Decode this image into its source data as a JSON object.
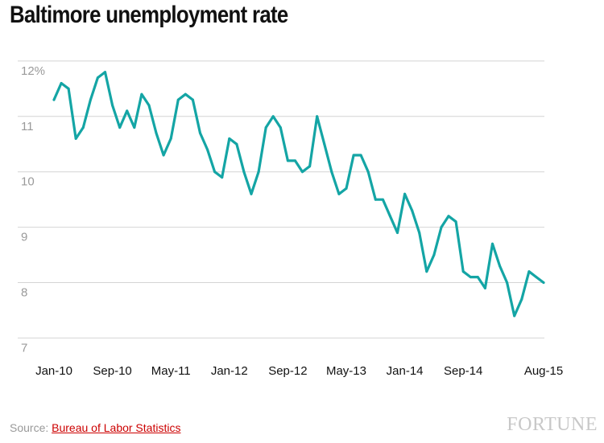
{
  "page": {
    "title": "Baltimore unemployment rate",
    "source_prefix": "Source: ",
    "source_link": "Bureau of Labor Statistics",
    "logo_text": "FORTUNE"
  },
  "chart_data": {
    "type": "line",
    "title": "Baltimore unemployment rate",
    "xlabel": "",
    "ylabel": "",
    "ylim": [
      6.6,
      12.1
    ],
    "y_ticks": [
      {
        "value": 12,
        "label": "12%"
      },
      {
        "value": 11,
        "label": "11"
      },
      {
        "value": 10,
        "label": "10"
      },
      {
        "value": 9,
        "label": "9"
      },
      {
        "value": 8,
        "label": "8"
      },
      {
        "value": 7,
        "label": "7"
      }
    ],
    "x_ticks": [
      {
        "month": "2010-01",
        "label": "Jan-10"
      },
      {
        "month": "2010-09",
        "label": "Sep-10"
      },
      {
        "month": "2011-05",
        "label": "May-11"
      },
      {
        "month": "2012-01",
        "label": "Jan-12"
      },
      {
        "month": "2012-09",
        "label": "Sep-12"
      },
      {
        "month": "2013-05",
        "label": "May-13"
      },
      {
        "month": "2014-01",
        "label": "Jan-14"
      },
      {
        "month": "2014-09",
        "label": "Sep-14"
      },
      {
        "month": "2015-08",
        "label": "Aug-15"
      }
    ],
    "grid": true,
    "line_color": "#14a5a5",
    "series": [
      {
        "x": [
          "2010-01",
          "2010-02",
          "2010-03",
          "2010-04",
          "2010-05",
          "2010-06",
          "2010-07",
          "2010-08",
          "2010-09",
          "2010-10",
          "2010-11",
          "2010-12",
          "2011-01",
          "2011-02",
          "2011-03",
          "2011-04",
          "2011-05",
          "2011-06",
          "2011-07",
          "2011-08",
          "2011-09",
          "2011-10",
          "2011-11",
          "2011-12",
          "2012-01",
          "2012-02",
          "2012-03",
          "2012-04",
          "2012-05",
          "2012-06",
          "2012-07",
          "2012-08",
          "2012-09",
          "2012-10",
          "2012-11",
          "2012-12",
          "2013-01",
          "2013-02",
          "2013-03",
          "2013-04",
          "2013-05",
          "2013-06",
          "2013-07",
          "2013-08",
          "2013-09",
          "2013-10",
          "2013-11",
          "2013-12",
          "2014-01",
          "2014-02",
          "2014-03",
          "2014-04",
          "2014-05",
          "2014-06",
          "2014-07",
          "2014-08",
          "2014-09",
          "2014-10",
          "2014-11",
          "2014-12",
          "2015-01",
          "2015-02",
          "2015-03",
          "2015-04",
          "2015-05",
          "2015-06",
          "2015-07",
          "2015-08"
        ],
        "values": [
          11.3,
          11.6,
          11.5,
          10.6,
          10.8,
          11.3,
          11.7,
          11.8,
          11.2,
          10.8,
          11.1,
          10.8,
          11.4,
          11.2,
          10.7,
          10.3,
          10.6,
          11.3,
          11.4,
          11.3,
          10.7,
          10.4,
          10.0,
          9.9,
          10.6,
          10.5,
          10.0,
          9.6,
          10.0,
          10.8,
          11.0,
          10.8,
          10.2,
          10.2,
          10.0,
          10.1,
          11.0,
          10.5,
          10.0,
          9.6,
          9.7,
          10.3,
          10.3,
          10.0,
          9.5,
          9.5,
          9.2,
          8.9,
          9.6,
          9.3,
          8.9,
          8.2,
          8.5,
          9.0,
          9.2,
          9.1,
          8.2,
          8.1,
          8.1,
          7.9,
          8.7,
          8.3,
          8.0,
          7.4,
          7.7,
          8.2,
          8.1,
          8.0
        ]
      }
    ]
  }
}
